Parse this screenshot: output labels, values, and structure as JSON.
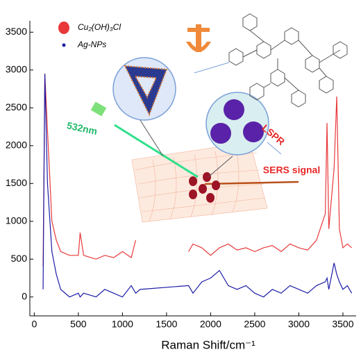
{
  "chart_data": {
    "type": "line",
    "x_label": "Raman Shift/cm⁻¹",
    "x": [
      100,
      120,
      150,
      200,
      250,
      300,
      400,
      500,
      520,
      560,
      700,
      800,
      900,
      1000,
      1100,
      1150,
      1200,
      1750,
      1800,
      1900,
      2000,
      2100,
      2200,
      2300,
      2400,
      2500,
      2600,
      2700,
      2800,
      2900,
      3000,
      3100,
      3200,
      3300,
      3320,
      3340,
      3400,
      3430,
      3460,
      3500,
      3550,
      3600
    ],
    "series": [
      {
        "name": "Cu₂(OH)₃Cl",
        "color": "#e8383a",
        "values": [
          400,
          2950,
          2200,
          1000,
          750,
          600,
          550,
          550,
          850,
          550,
          500,
          550,
          520,
          600,
          520,
          750,
          null,
          600,
          700,
          650,
          550,
          650,
          700,
          620,
          650,
          600,
          650,
          680,
          600,
          700,
          650,
          620,
          750,
          1100,
          2300,
          900,
          1700,
          2650,
          900,
          650,
          700,
          650
        ]
      },
      {
        "name": "Ag-NPs",
        "color": "#1c1ca8",
        "values": [
          100,
          2950,
          1500,
          600,
          300,
          100,
          0,
          50,
          0,
          50,
          0,
          100,
          50,
          0,
          150,
          50,
          100,
          150,
          50,
          200,
          250,
          350,
          150,
          100,
          150,
          50,
          0,
          100,
          50,
          150,
          100,
          50,
          150,
          200,
          250,
          100,
          450,
          300,
          200,
          100,
          150,
          50
        ]
      }
    ],
    "xlim": [
      -50,
      3650
    ],
    "xticks": [
      0,
      500,
      1000,
      1500,
      2000,
      2500,
      3000,
      3500
    ],
    "ylim": [
      -250,
      3650
    ],
    "yticks": [
      0,
      500,
      1000,
      1500,
      2000,
      2500,
      3000,
      3500
    ],
    "annotations": [
      "532nm",
      "LSPR",
      "SERS signal"
    ]
  }
}
